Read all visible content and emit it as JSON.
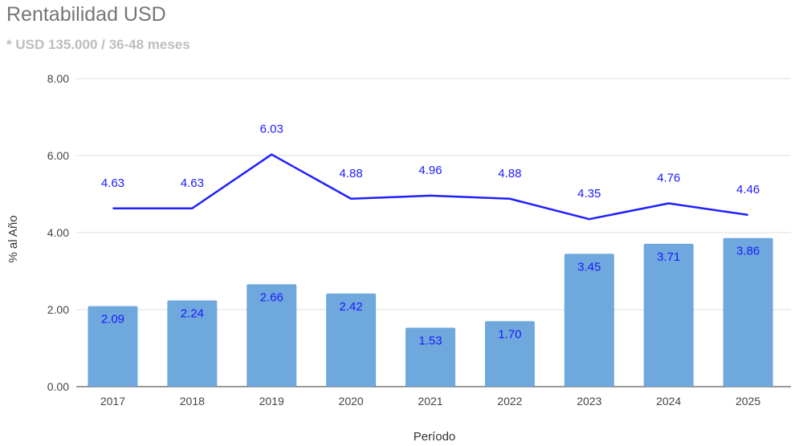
{
  "chart_data": {
    "type": "bar+line",
    "title": "Rentabilidad USD",
    "subtitle": "* USD 135.000 / 36-48 meses",
    "xlabel": "Período",
    "ylabel": "% al Año",
    "ylim": [
      0,
      8
    ],
    "yticks": [
      "0.00",
      "2.00",
      "4.00",
      "6.00",
      "8.00"
    ],
    "ytick_values": [
      0,
      2,
      4,
      6,
      8
    ],
    "grid": true,
    "categories": [
      "2017",
      "2018",
      "2019",
      "2020",
      "2021",
      "2022",
      "2023",
      "2024",
      "2025"
    ],
    "series": [
      {
        "name": "bars",
        "type": "bar",
        "color": "#6fa8dc",
        "label_color": "#1a1aff",
        "values": [
          2.09,
          2.24,
          2.66,
          2.42,
          1.53,
          1.7,
          3.45,
          3.71,
          3.86
        ],
        "labels": [
          "2.09",
          "2.24",
          "2.66",
          "2.42",
          "1.53",
          "1.70",
          "3.45",
          "3.71",
          "3.86"
        ]
      },
      {
        "name": "line",
        "type": "line",
        "color": "#1f1fff",
        "label_color": "#1a1aff",
        "values": [
          4.63,
          4.63,
          6.03,
          4.88,
          4.96,
          4.88,
          4.35,
          4.76,
          4.46
        ],
        "labels": [
          "4.63",
          "4.63",
          "6.03",
          "4.88",
          "4.96",
          "4.88",
          "4.35",
          "4.76",
          "4.46"
        ]
      }
    ]
  }
}
